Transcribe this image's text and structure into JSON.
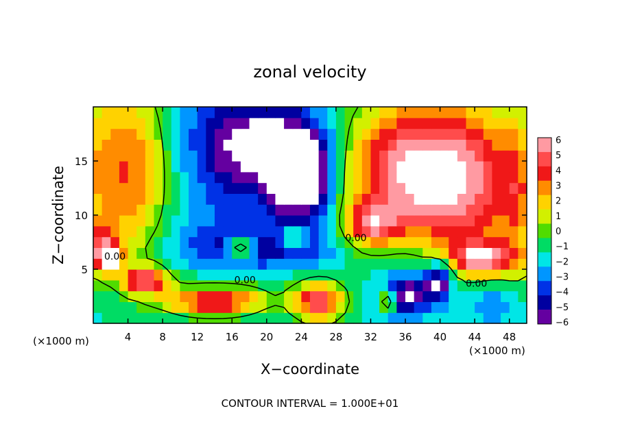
{
  "chart_data": {
    "type": "heatmap",
    "title": "zonal velocity",
    "xlabel": "X−coordinate",
    "ylabel": "Z−coordinate",
    "x_unit_left": "(×1000 m)",
    "x_unit_right": "(×1000 m)",
    "xlim": [
      0,
      50
    ],
    "ylim": [
      0,
      20
    ],
    "x_ticks": [
      4,
      8,
      12,
      16,
      20,
      24,
      28,
      32,
      36,
      40,
      44,
      48
    ],
    "x_tick_labels": [
      "4",
      "8",
      "12",
      "16",
      "20",
      "24",
      "28",
      "32",
      "36",
      "40",
      "44",
      "48"
    ],
    "y_ticks": [
      5,
      10,
      15
    ],
    "y_tick_labels": [
      "5",
      "10",
      "15"
    ],
    "colorbar": {
      "levels": [
        6,
        5,
        4,
        3,
        2,
        1,
        0,
        -1,
        -2,
        -3,
        -4,
        -5,
        -6
      ],
      "labels": [
        "6",
        "5",
        "4",
        "3",
        "2",
        "1",
        "0",
        "−1",
        "−2",
        "−3",
        "−4",
        "−5",
        "−6"
      ],
      "colors": [
        "#ff9aa2",
        "#ff4c4c",
        "#f01818",
        "#ff8c00",
        "#ffd200",
        "#d2f000",
        "#50dc00",
        "#00dc64",
        "#00e6e6",
        "#0096ff",
        "#0032e6",
        "#0000a0",
        "#6400a0"
      ]
    },
    "contour_labels": [
      {
        "text": "0.00",
        "x": 2.5,
        "z": 5.9
      },
      {
        "text": "0.00",
        "x": 17.5,
        "z": 3.7
      },
      {
        "text": "0.00",
        "x": 30.3,
        "z": 7.6
      },
      {
        "text": "0.00",
        "x": 44.2,
        "z": 3.4
      }
    ],
    "footer": "CONTOUR INTERVAL = 1.000E+01",
    "field": {
      "cols": 50,
      "rows": 20,
      "background": -2,
      "blobs": [
        {
          "x": 2,
          "z": 14,
          "sx": 5,
          "sz": 9,
          "a": 5
        },
        {
          "x": 1,
          "z": 7,
          "sx": 2,
          "sz": 2,
          "a": 5
        },
        {
          "x": 6,
          "z": 14,
          "sx": 3,
          "sz": 8,
          "a": 2
        },
        {
          "x": 15,
          "z": 13,
          "sx": 4,
          "sz": 7,
          "a": -1
        },
        {
          "x": 16,
          "z": 17,
          "sx": 5,
          "sz": 5,
          "a": -3
        },
        {
          "x": 22,
          "z": 16,
          "sx": 5,
          "sz": 4,
          "a": -5
        },
        {
          "x": 23,
          "z": 13,
          "sx": 3,
          "sz": 4,
          "a": -5
        },
        {
          "x": 26,
          "z": 13,
          "sx": 2,
          "sz": 4,
          "a": -3
        },
        {
          "x": 19,
          "z": 7,
          "sx": 9,
          "sz": 2,
          "a": -3
        },
        {
          "x": 36,
          "z": 14,
          "sx": 7,
          "sz": 7,
          "a": 8
        },
        {
          "x": 44,
          "z": 13,
          "sx": 6,
          "sz": 8,
          "a": 6
        },
        {
          "x": 49,
          "z": 12,
          "sx": 2,
          "sz": 8,
          "a": 3
        },
        {
          "x": 32,
          "z": 9,
          "sx": 3,
          "sz": 2,
          "a": 5
        },
        {
          "x": 45,
          "z": 6,
          "sx": 4,
          "sz": 1.5,
          "a": 6
        },
        {
          "x": 36,
          "z": 6,
          "sx": 4,
          "sz": 2.5,
          "a": -1
        },
        {
          "x": 37,
          "z": 3,
          "sx": 3,
          "sz": 2,
          "a": -4
        },
        {
          "x": 40,
          "z": 4,
          "sx": 1.5,
          "sz": 2,
          "a": -5
        },
        {
          "x": 46,
          "z": 2,
          "sx": 3,
          "sz": 2,
          "a": -2
        },
        {
          "x": 16,
          "z": 4,
          "sx": 9,
          "sz": 1.5,
          "a": 1
        },
        {
          "x": 14,
          "z": 2,
          "sx": 6,
          "sz": 1.3,
          "a": 7
        },
        {
          "x": 26,
          "z": 2,
          "sx": 3,
          "sz": 2,
          "a": 7
        },
        {
          "x": 6,
          "z": 4,
          "sx": 2.5,
          "sz": 1.2,
          "a": 7
        },
        {
          "x": 2,
          "z": 6,
          "sx": 1.2,
          "sz": 1,
          "a": 7
        },
        {
          "x": 23,
          "z": 8,
          "sx": 1.5,
          "sz": 1,
          "a": 4
        },
        {
          "x": 17,
          "z": 7,
          "sx": 1.5,
          "sz": 0.8,
          "a": 7
        },
        {
          "x": 35,
          "z": 2,
          "sx": 2,
          "sz": 1.5,
          "a": -3
        },
        {
          "x": 34,
          "z": 2,
          "sx": 1,
          "sz": 1,
          "a": 7
        }
      ]
    }
  }
}
